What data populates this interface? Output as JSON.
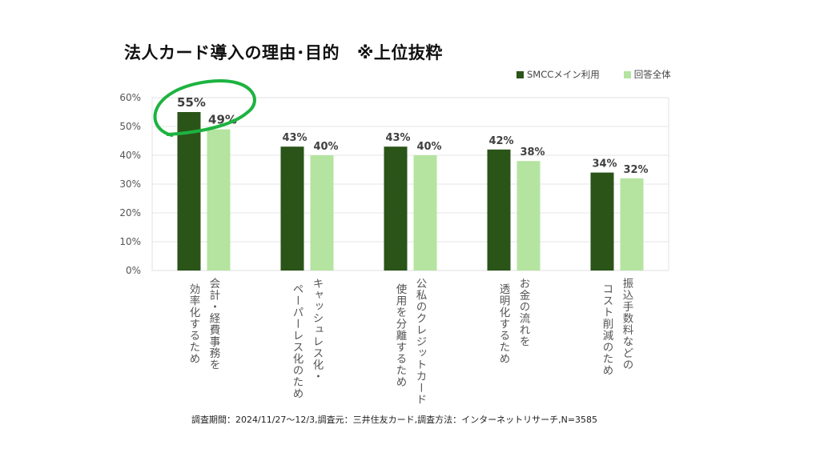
{
  "title": {
    "main": "法人カード導入の理由･目的",
    "note": "※上位抜粋"
  },
  "legend": [
    {
      "label": "SMCCメイン利用",
      "color": "#2a5418"
    },
    {
      "label": "回答全体",
      "color": "#b4e4a0"
    }
  ],
  "footer": "調査期間：2024/11/27～12/3,調査元：三井住友カード,調査方法：インターネットリサーチ,N=3585",
  "highlight_color": "#1db340",
  "chart_data": {
    "type": "bar",
    "title": "法人カード導入の理由･目的 ※上位抜粋",
    "xlabel": "",
    "ylabel": "",
    "ylim": [
      0,
      60
    ],
    "yticks": [
      0,
      10,
      20,
      30,
      40,
      50,
      60
    ],
    "ytick_labels": [
      "0%",
      "10%",
      "20%",
      "30%",
      "40%",
      "50%",
      "60%"
    ],
    "grid": true,
    "legend_position": "top-right",
    "categories": [
      {
        "line1": "会計・経費事務を",
        "line2": "効率化するため"
      },
      {
        "line1": "キャッシュレス化・",
        "line2": "ペーパーレス化のため"
      },
      {
        "line1": "公私のクレジットカード",
        "line2": "使用を分離するため"
      },
      {
        "line1": "お金の流れを",
        "line2": "透明化するため"
      },
      {
        "line1": "振込手数料などの",
        "line2": "コスト削減のため"
      }
    ],
    "series": [
      {
        "name": "SMCCメイン利用",
        "color": "#2a5418",
        "values": [
          55,
          43,
          43,
          42,
          34
        ],
        "labels": [
          "55%",
          "43%",
          "43%",
          "42%",
          "34%"
        ]
      },
      {
        "name": "回答全体",
        "color": "#b4e4a0",
        "values": [
          49,
          40,
          40,
          38,
          32
        ],
        "labels": [
          "49%",
          "40%",
          "40%",
          "38%",
          "32%"
        ]
      }
    ],
    "annotation": "first category circled"
  }
}
